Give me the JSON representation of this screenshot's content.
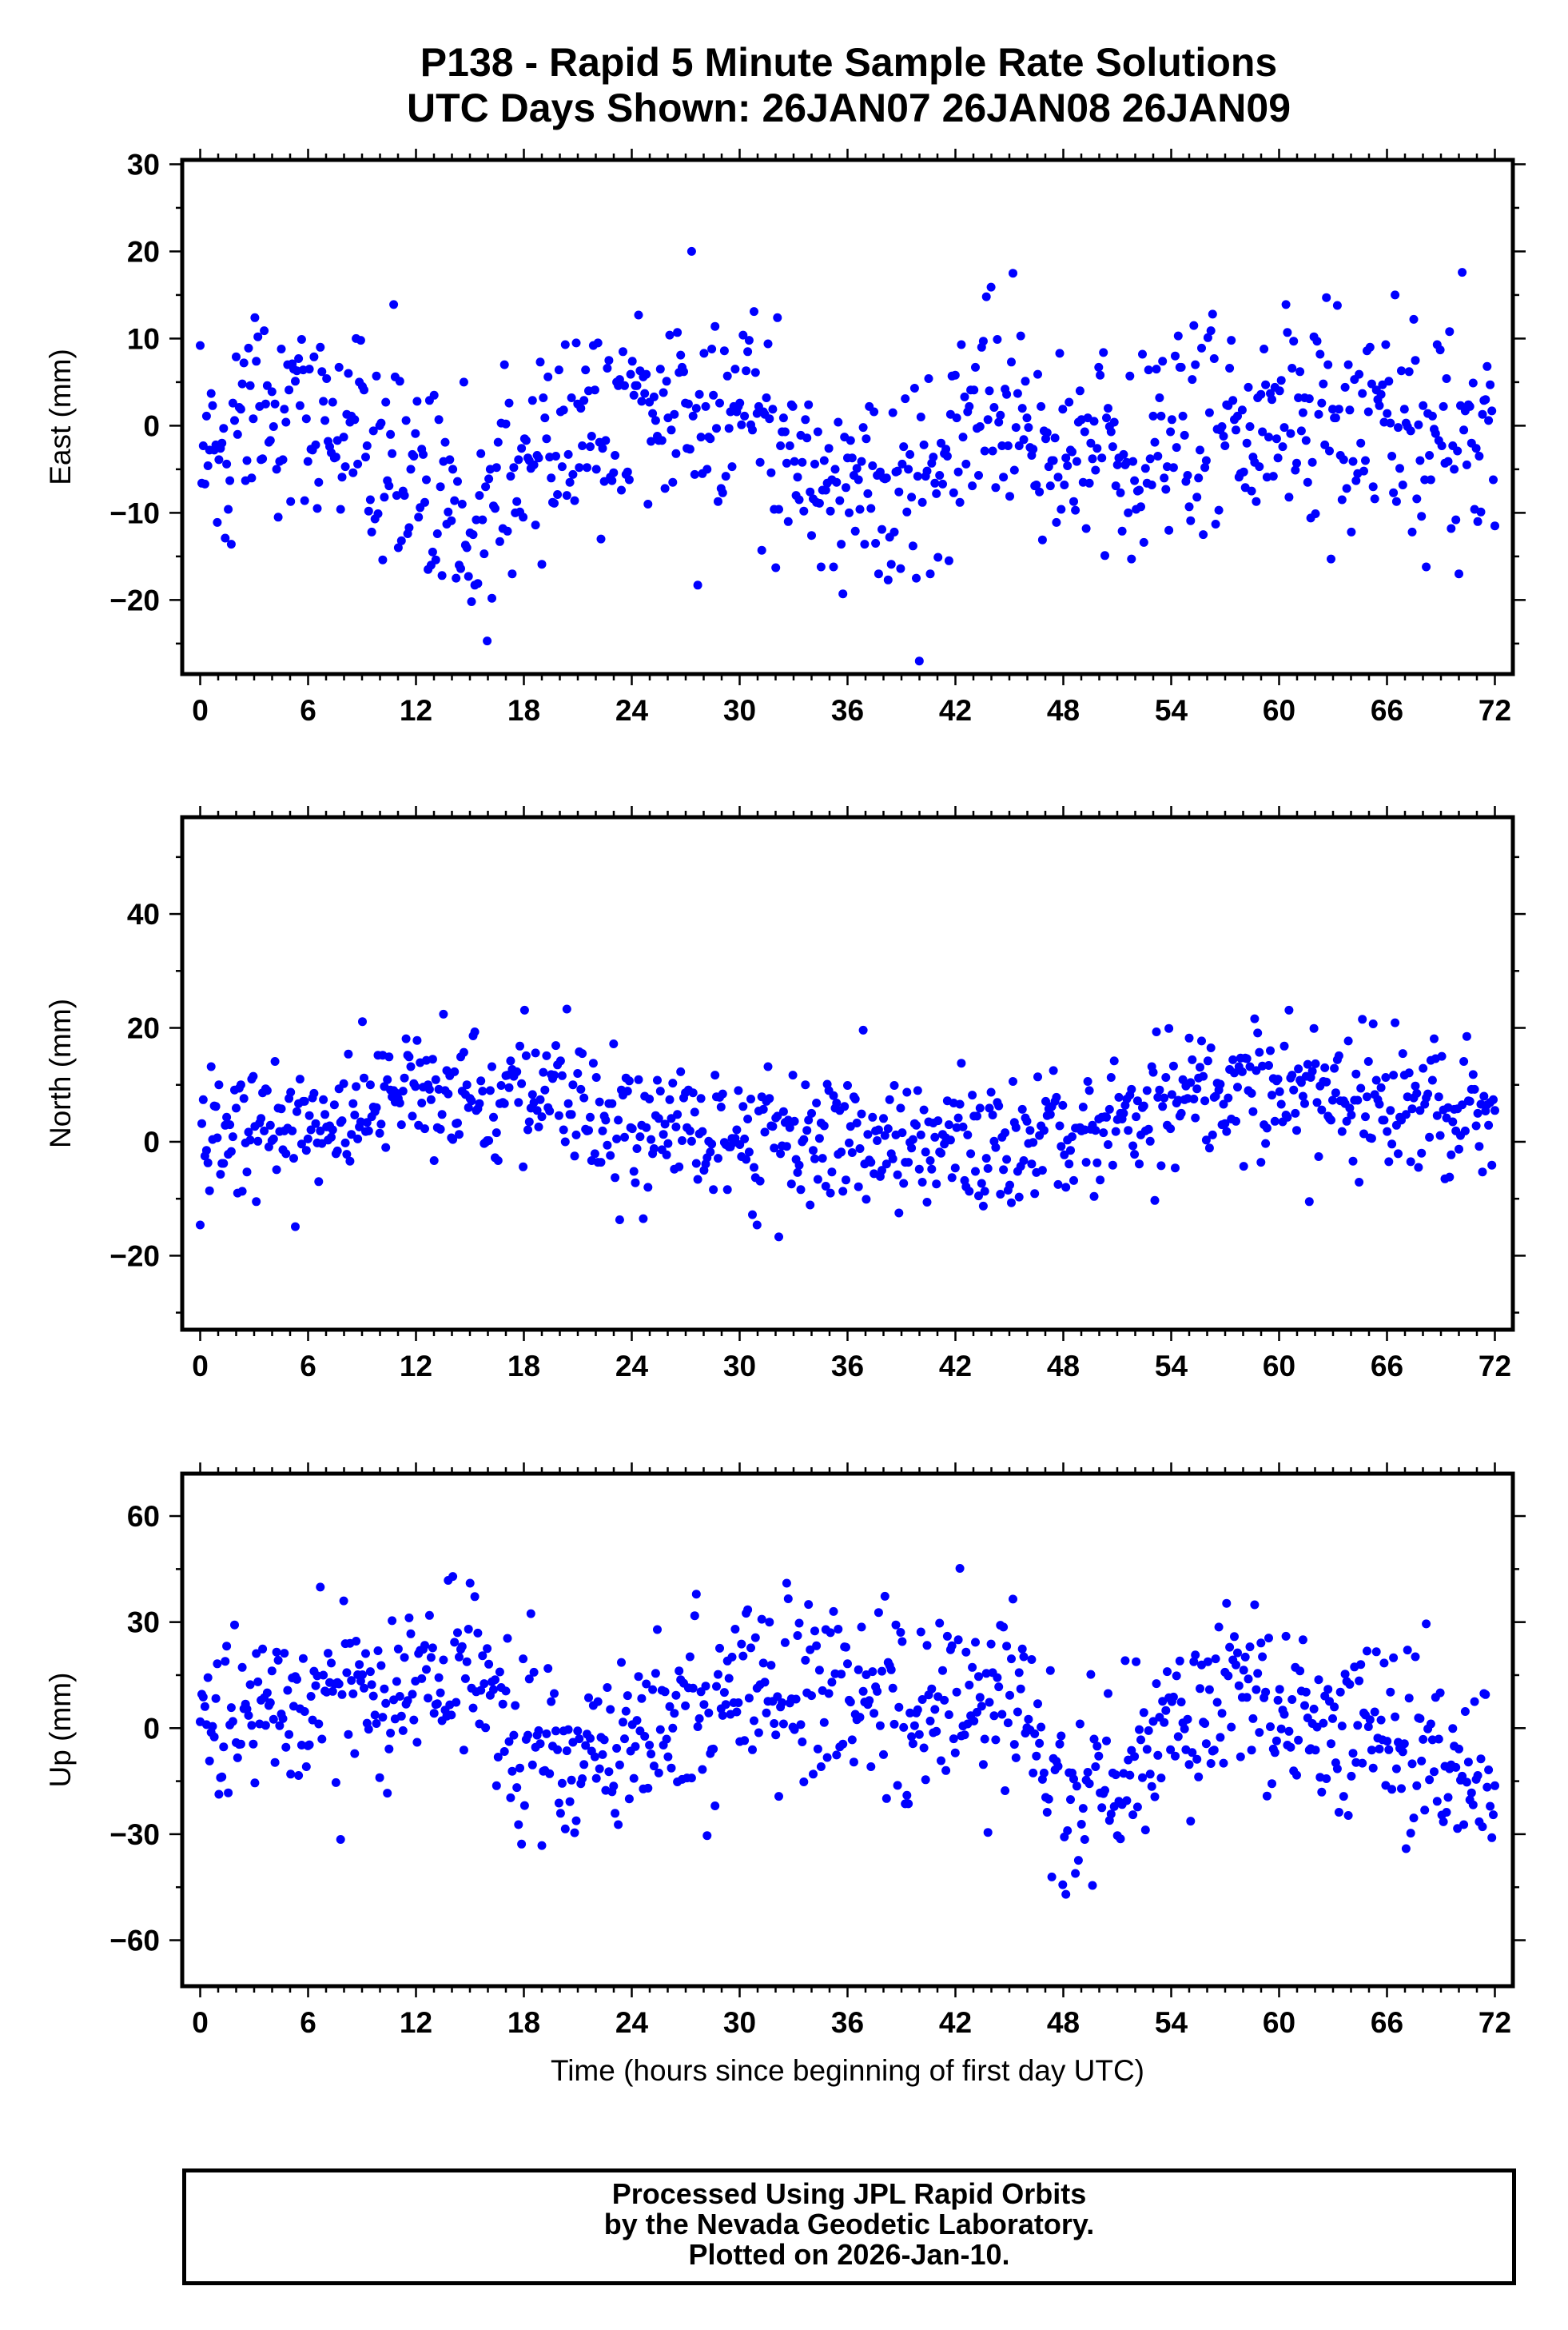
{
  "title": {
    "line1": "P138 - Rapid 5 Minute Sample Rate Solutions",
    "line2": "UTC Days Shown:  26JAN07 26JAN08 26JAN09"
  },
  "credit": {
    "line1": "Processed Using JPL Rapid Orbits",
    "line2": "by the Nevada Geodetic Laboratory.",
    "line3": "Plotted on 2026-Jan-10."
  },
  "colors": {
    "points": "#0000ff",
    "axes": "#000000",
    "background": "#ffffff"
  },
  "chart_data": [
    {
      "type": "scatter",
      "ylabel": "East (mm)",
      "xlabel": "",
      "xlim": [
        -1,
        73
      ],
      "ylim": [
        -28.5,
        30.5
      ],
      "xticks": [
        0,
        6,
        12,
        18,
        24,
        30,
        36,
        42,
        48,
        54,
        60,
        66,
        72
      ],
      "yticks": [
        -20,
        -10,
        0,
        10,
        20,
        30
      ],
      "series": [
        {
          "x": [],
          "y": []
        }
      ]
    },
    {
      "type": "scatter",
      "ylabel": "North (mm)",
      "xlabel": "",
      "xlim": [
        -1,
        73
      ],
      "ylim": [
        -33,
        57
      ],
      "xticks": [
        0,
        6,
        12,
        18,
        24,
        30,
        36,
        42,
        48,
        54,
        60,
        66,
        72
      ],
      "yticks": [
        -20,
        0,
        20,
        40
      ],
      "series": [
        {
          "x": [],
          "y": []
        }
      ]
    },
    {
      "type": "scatter",
      "ylabel": "Up (mm)",
      "xlabel": "Time (hours since beginning of first day UTC)",
      "xlim": [
        -1,
        73
      ],
      "ylim": [
        -73,
        72
      ],
      "xticks": [
        0,
        6,
        12,
        18,
        24,
        30,
        36,
        42,
        48,
        54,
        60,
        66,
        72
      ],
      "yticks": [
        -60,
        -30,
        0,
        30,
        60
      ],
      "series": [
        {
          "x": [],
          "y": []
        }
      ]
    }
  ]
}
